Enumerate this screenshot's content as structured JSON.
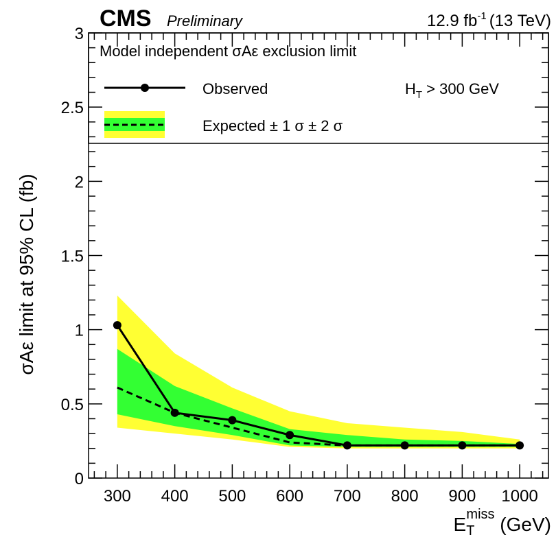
{
  "header": {
    "experiment": "CMS",
    "status": "Preliminary",
    "lumi_value": "12.9 fb",
    "lumi_exp": "-1",
    "energy": "(13 TeV)"
  },
  "legend": {
    "title": "Model independent σAε exclusion limit",
    "observed_label": "Observed",
    "expected_label": "Expected ± 1 σ ± 2 σ",
    "cut_main": "H",
    "cut_sub": "T",
    "cut_rest": " > 300 GeV"
  },
  "colors": {
    "band_2sigma": "#ffff33",
    "band_1sigma": "#33ff33",
    "observed": "#000000",
    "expected": "#000000"
  },
  "chart_data": {
    "type": "line",
    "title": "",
    "xlabel_main": "E",
    "xlabel_sub": "T",
    "xlabel_sup": "miss",
    "xlabel_unit": " (GeV)",
    "ylabel": "σAε limit at 95% CL (fb)",
    "xlim": [
      250,
      1050
    ],
    "ylim": [
      0,
      3
    ],
    "x_ticks": [
      300,
      400,
      500,
      600,
      700,
      800,
      900,
      1000
    ],
    "y_ticks": [
      0,
      0.5,
      1,
      1.5,
      2,
      2.5,
      3
    ],
    "y_tick_labels": [
      "0",
      "0.5",
      "1",
      "1.5",
      "2",
      "2.5",
      "3"
    ],
    "x": [
      300,
      400,
      500,
      600,
      700,
      800,
      900,
      1000
    ],
    "series": [
      {
        "name": "Observed",
        "values": [
          1.03,
          0.44,
          0.39,
          0.29,
          0.22,
          0.22,
          0.22,
          0.22
        ]
      },
      {
        "name": "Expected",
        "values": [
          0.61,
          0.44,
          0.34,
          0.24,
          0.22,
          0.22,
          0.22,
          0.22
        ]
      }
    ],
    "band_1sigma": {
      "low": [
        0.43,
        0.35,
        0.29,
        0.22,
        0.21,
        0.21,
        0.21,
        0.21
      ],
      "high": [
        0.87,
        0.62,
        0.47,
        0.33,
        0.29,
        0.26,
        0.25,
        0.23
      ]
    },
    "band_2sigma": {
      "low": [
        0.34,
        0.3,
        0.26,
        0.21,
        0.2,
        0.2,
        0.2,
        0.2
      ],
      "high": [
        1.23,
        0.84,
        0.61,
        0.45,
        0.37,
        0.34,
        0.31,
        0.26
      ]
    },
    "legend_position": "top"
  }
}
